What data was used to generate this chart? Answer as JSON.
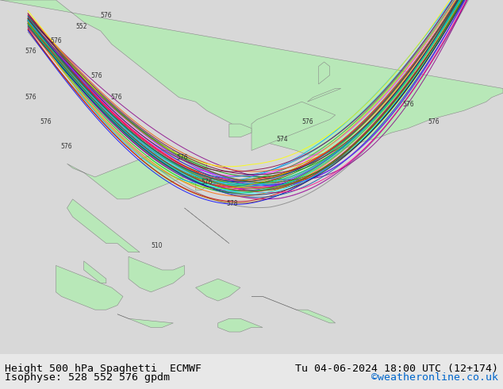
{
  "title_left": "Height 500 hPa Spaghetti  ECMWF",
  "title_right": "Tu 04-06-2024 18:00 UTC (12+174)",
  "subtitle_left": "Isophyse: 528 552 576 gpdm",
  "subtitle_right": "©weatheronline.co.uk",
  "subtitle_right_color": "#0066cc",
  "bg_ocean": "#d8d8d8",
  "bg_land": "#b8e8b8",
  "border_color": "#888888",
  "map_extent": [
    85,
    175,
    -15,
    65
  ],
  "bottom_bar_color": "#e8e8e8",
  "bottom_bar_height": 0.09,
  "title_fontsize": 9.5,
  "subtitle_fontsize": 9.5,
  "contour_colors": [
    "#555555",
    "#555555",
    "#555555",
    "#555555",
    "#555555",
    "#555555",
    "#555555",
    "#555555",
    "#555555",
    "#555555",
    "#aa6600",
    "#aa6600",
    "#ff00ff",
    "#ff00ff",
    "#ff0000",
    "#ff0000",
    "#00aa00",
    "#00aa00",
    "#0000ff",
    "#0000ff",
    "#00aaff",
    "#00aaff",
    "#ffaa00",
    "#ffaa00",
    "#aa00aa",
    "#aa00aa"
  ],
  "contour_lw": 0.7,
  "label_fontsize": 5.5
}
